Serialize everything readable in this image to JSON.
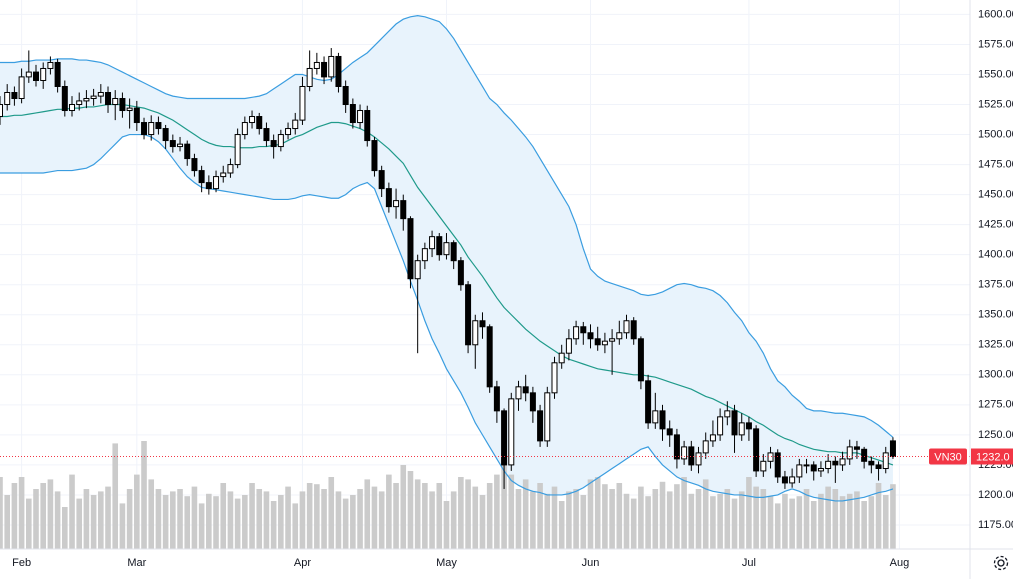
{
  "chart_data": {
    "type": "candlestick",
    "name": "VN30",
    "open": [
      1515,
      1525,
      1535,
      1530,
      1548,
      1552,
      1545,
      1555,
      1560,
      1540,
      1520,
      1525,
      1528,
      1530,
      1532,
      1535,
      1525,
      1530,
      1520,
      1522,
      1510,
      1500,
      1510,
      1505,
      1495,
      1490,
      1492,
      1480,
      1470,
      1460,
      1455,
      1465,
      1468,
      1475,
      1500,
      1510,
      1515,
      1505,
      1495,
      1490,
      1500,
      1505,
      1512,
      1540,
      1555,
      1560,
      1548,
      1565,
      1540,
      1525,
      1510,
      1520,
      1495,
      1470,
      1455,
      1440,
      1445,
      1430,
      1380,
      1395,
      1405,
      1415,
      1400,
      1410,
      1395,
      1375,
      1325,
      1345,
      1340,
      1290,
      1270,
      1225,
      1280,
      1290,
      1285,
      1270,
      1245,
      1285,
      1310,
      1318,
      1330,
      1340,
      1335,
      1330,
      1325,
      1328,
      1330,
      1335,
      1345,
      1330,
      1295,
      1260,
      1270,
      1255,
      1250,
      1230,
      1240,
      1225,
      1235,
      1245,
      1250,
      1265,
      1270,
      1250,
      1260,
      1255,
      1220,
      1228,
      1235,
      1215,
      1210,
      1215,
      1225,
      1225,
      1220,
      1222,
      1228,
      1225,
      1230,
      1240,
      1238,
      1228,
      1225,
      1222,
      1245
    ],
    "high": [
      1532,
      1542,
      1540,
      1555,
      1570,
      1558,
      1560,
      1565,
      1563,
      1545,
      1532,
      1535,
      1537,
      1538,
      1542,
      1540,
      1537,
      1535,
      1530,
      1528,
      1514,
      1516,
      1515,
      1508,
      1500,
      1498,
      1495,
      1484,
      1474,
      1466,
      1470,
      1474,
      1480,
      1505,
      1515,
      1520,
      1518,
      1510,
      1500,
      1504,
      1510,
      1518,
      1548,
      1570,
      1568,
      1565,
      1572,
      1568,
      1545,
      1530,
      1525,
      1524,
      1498,
      1474,
      1460,
      1455,
      1450,
      1432,
      1400,
      1410,
      1420,
      1418,
      1418,
      1412,
      1398,
      1378,
      1350,
      1352,
      1342,
      1295,
      1272,
      1285,
      1295,
      1300,
      1290,
      1275,
      1290,
      1315,
      1325,
      1338,
      1345,
      1344,
      1342,
      1340,
      1335,
      1338,
      1345,
      1350,
      1348,
      1332,
      1300,
      1285,
      1275,
      1262,
      1255,
      1245,
      1245,
      1240,
      1252,
      1262,
      1272,
      1278,
      1275,
      1268,
      1265,
      1258,
      1234,
      1240,
      1238,
      1220,
      1222,
      1230,
      1230,
      1228,
      1228,
      1234,
      1232,
      1236,
      1246,
      1245,
      1240,
      1232,
      1228,
      1240,
      1248
    ],
    "low": [
      1508,
      1520,
      1524,
      1526,
      1543,
      1540,
      1538,
      1550,
      1535,
      1515,
      1515,
      1520,
      1522,
      1524,
      1526,
      1518,
      1512,
      1514,
      1505,
      1503,
      1496,
      1495,
      1500,
      1488,
      1485,
      1486,
      1474,
      1465,
      1452,
      1450,
      1452,
      1460,
      1464,
      1472,
      1496,
      1505,
      1500,
      1490,
      1480,
      1486,
      1496,
      1500,
      1508,
      1536,
      1550,
      1542,
      1544,
      1535,
      1518,
      1505,
      1505,
      1490,
      1465,
      1448,
      1435,
      1430,
      1420,
      1372,
      1318,
      1388,
      1398,
      1395,
      1396,
      1388,
      1370,
      1318,
      1305,
      1330,
      1285,
      1260,
      1205,
      1220,
      1270,
      1278,
      1260,
      1240,
      1240,
      1280,
      1305,
      1312,
      1325,
      1325,
      1322,
      1320,
      1318,
      1300,
      1325,
      1330,
      1325,
      1288,
      1255,
      1255,
      1245,
      1240,
      1222,
      1225,
      1220,
      1218,
      1230,
      1240,
      1245,
      1258,
      1235,
      1245,
      1245,
      1215,
      1215,
      1222,
      1210,
      1205,
      1206,
      1210,
      1218,
      1212,
      1215,
      1218,
      1210,
      1220,
      1225,
      1230,
      1222,
      1218,
      1212,
      1218,
      1230
    ],
    "close": [
      1525,
      1535,
      1530,
      1548,
      1552,
      1545,
      1555,
      1560,
      1540,
      1520,
      1525,
      1528,
      1530,
      1532,
      1535,
      1525,
      1530,
      1520,
      1522,
      1510,
      1500,
      1510,
      1505,
      1495,
      1490,
      1492,
      1480,
      1470,
      1460,
      1455,
      1465,
      1468,
      1475,
      1500,
      1510,
      1515,
      1505,
      1495,
      1490,
      1500,
      1505,
      1512,
      1540,
      1555,
      1560,
      1548,
      1565,
      1540,
      1525,
      1510,
      1520,
      1495,
      1470,
      1455,
      1440,
      1445,
      1430,
      1380,
      1395,
      1405,
      1415,
      1400,
      1410,
      1395,
      1375,
      1325,
      1345,
      1340,
      1290,
      1270,
      1225,
      1280,
      1290,
      1285,
      1270,
      1245,
      1285,
      1310,
      1318,
      1330,
      1340,
      1335,
      1330,
      1325,
      1328,
      1330,
      1335,
      1345,
      1330,
      1295,
      1260,
      1270,
      1255,
      1250,
      1230,
      1240,
      1225,
      1235,
      1245,
      1250,
      1265,
      1270,
      1250,
      1260,
      1255,
      1220,
      1228,
      1235,
      1215,
      1210,
      1215,
      1225,
      1225,
      1220,
      1222,
      1228,
      1225,
      1230,
      1240,
      1238,
      1228,
      1225,
      1222,
      1235,
      1232
    ],
    "volume": [
      60,
      45,
      55,
      60,
      42,
      50,
      55,
      58,
      48,
      35,
      62,
      42,
      50,
      45,
      48,
      52,
      88,
      38,
      50,
      62,
      90,
      58,
      50,
      45,
      48,
      50,
      44,
      52,
      38,
      46,
      44,
      55,
      48,
      42,
      45,
      55,
      50,
      48,
      40,
      45,
      52,
      38,
      48,
      55,
      54,
      50,
      60,
      48,
      42,
      45,
      50,
      58,
      52,
      48,
      62,
      55,
      70,
      65,
      58,
      55,
      48,
      55,
      40,
      48,
      60,
      58,
      52,
      45,
      55,
      62,
      80,
      62,
      50,
      58,
      48,
      55,
      46,
      52,
      40,
      48,
      50,
      45,
      58,
      60,
      54,
      50,
      55,
      46,
      42,
      52,
      44,
      50,
      56,
      48,
      54,
      60,
      46,
      50,
      58,
      44,
      46,
      50,
      42,
      48,
      60,
      52,
      50,
      44,
      38,
      46,
      42,
      44,
      50,
      40,
      46,
      52,
      50,
      44,
      46,
      48,
      40,
      44,
      55,
      45,
      54
    ],
    "upper": [
      1560,
      1560,
      1560,
      1561,
      1561,
      1562,
      1562,
      1562,
      1563,
      1563,
      1563,
      1562,
      1562,
      1561,
      1560,
      1558,
      1555,
      1552,
      1549,
      1546,
      1543,
      1540,
      1537,
      1534,
      1532,
      1531,
      1530,
      1530,
      1530,
      1530,
      1530,
      1530,
      1530,
      1530,
      1530,
      1531,
      1532,
      1534,
      1538,
      1542,
      1546,
      1550,
      1550,
      1548,
      1546,
      1545,
      1546,
      1550,
      1555,
      1560,
      1564,
      1568,
      1574,
      1580,
      1586,
      1592,
      1596,
      1598,
      1599,
      1598,
      1596,
      1594,
      1588,
      1580,
      1570,
      1560,
      1550,
      1540,
      1530,
      1525,
      1518,
      1512,
      1505,
      1498,
      1490,
      1480,
      1470,
      1460,
      1450,
      1440,
      1425,
      1405,
      1388,
      1382,
      1378,
      1376,
      1374,
      1372,
      1370,
      1367,
      1366,
      1367,
      1369,
      1372,
      1375,
      1376,
      1375,
      1373,
      1372,
      1370,
      1366,
      1360,
      1352,
      1345,
      1335,
      1328,
      1318,
      1305,
      1295,
      1290,
      1283,
      1278,
      1272,
      1270,
      1270,
      1269,
      1268,
      1268,
      1267,
      1266,
      1265,
      1262,
      1258,
      1253,
      1248
    ],
    "middle": [
      1515,
      1515,
      1516,
      1516,
      1517,
      1518,
      1519,
      1520,
      1521,
      1521,
      1522,
      1522,
      1523,
      1523,
      1524,
      1525,
      1525,
      1525,
      1524,
      1523,
      1522,
      1520,
      1518,
      1515,
      1512,
      1508,
      1504,
      1500,
      1496,
      1493,
      1491,
      1490,
      1490,
      1489,
      1489,
      1489,
      1490,
      1490,
      1491,
      1492,
      1495,
      1498,
      1500,
      1503,
      1506,
      1508,
      1510,
      1510,
      1509,
      1507,
      1505,
      1502,
      1498,
      1493,
      1488,
      1482,
      1476,
      1466,
      1456,
      1448,
      1440,
      1432,
      1424,
      1416,
      1408,
      1398,
      1390,
      1382,
      1373,
      1364,
      1356,
      1350,
      1344,
      1338,
      1333,
      1328,
      1324,
      1320,
      1316,
      1313,
      1311,
      1309,
      1307,
      1305,
      1304,
      1303,
      1302,
      1301,
      1300,
      1300,
      1299,
      1298,
      1296,
      1294,
      1292,
      1290,
      1288,
      1285,
      1282,
      1280,
      1277,
      1274,
      1271,
      1268,
      1265,
      1261,
      1258,
      1254,
      1250,
      1247,
      1245,
      1242,
      1240,
      1238,
      1237,
      1236,
      1236,
      1235,
      1235,
      1235,
      1233,
      1231,
      1229,
      1227,
      1225
    ],
    "lower": [
      1468,
      1468,
      1468,
      1468,
      1468,
      1468,
      1468,
      1469,
      1470,
      1470,
      1470,
      1471,
      1472,
      1475,
      1480,
      1486,
      1492,
      1498,
      1500,
      1500,
      1500,
      1498,
      1494,
      1488,
      1480,
      1472,
      1465,
      1460,
      1456,
      1455,
      1454,
      1453,
      1452,
      1451,
      1450,
      1449,
      1448,
      1447,
      1446,
      1446,
      1446,
      1447,
      1449,
      1450,
      1449,
      1448,
      1447,
      1447,
      1450,
      1455,
      1458,
      1460,
      1455,
      1440,
      1425,
      1410,
      1395,
      1378,
      1362,
      1345,
      1330,
      1318,
      1305,
      1295,
      1285,
      1273,
      1260,
      1250,
      1240,
      1230,
      1220,
      1212,
      1208,
      1205,
      1203,
      1202,
      1200,
      1200,
      1200,
      1201,
      1203,
      1206,
      1210,
      1214,
      1218,
      1222,
      1226,
      1230,
      1234,
      1238,
      1240,
      1232,
      1225,
      1220,
      1215,
      1212,
      1210,
      1208,
      1205,
      1203,
      1202,
      1201,
      1200,
      1200,
      1199,
      1198,
      1198,
      1199,
      1200,
      1203,
      1205,
      1203,
      1200,
      1198,
      1197,
      1196,
      1195,
      1195,
      1196,
      1197,
      1198,
      1200,
      1202,
      1203,
      1205
    ],
    "up_color": "#ffffff",
    "down_color": "#000000",
    "volume_color": "#cbcbcb",
    "volume_lim": [
      0,
      100
    ],
    "band_color": "#3a9de0",
    "middle_color": "#1f9a8a",
    "band_fill": "#e8f3fc",
    "last_price": {
      "value": 1232,
      "label": "1232.0"
    },
    "last_color": "#f23645",
    "xlim": [
      0,
      134.7
    ],
    "xticks": [
      {
        "value": 3,
        "label": "Feb"
      },
      {
        "value": 19,
        "label": "Mar"
      },
      {
        "value": 42,
        "label": "Apr"
      },
      {
        "value": 62,
        "label": "May"
      },
      {
        "value": 82,
        "label": "Jun"
      },
      {
        "value": 104,
        "label": "Jul"
      },
      {
        "value": 124.9,
        "label": "Aug"
      }
    ],
    "ylim": [
      1155,
      1612
    ],
    "yticks": [
      {
        "value": 1175,
        "label": "1175.00"
      },
      {
        "value": 1200,
        "label": "1200.00"
      },
      {
        "value": 1225,
        "label": "1225.00"
      },
      {
        "value": 1250,
        "label": "1250.00"
      },
      {
        "value": 1275,
        "label": "1275.00"
      },
      {
        "value": 1300,
        "label": "1300.00"
      },
      {
        "value": 1325,
        "label": "1325.00"
      },
      {
        "value": 1350,
        "label": "1350.00"
      },
      {
        "value": 1375,
        "label": "1375.00"
      },
      {
        "value": 1400,
        "label": "1400.00"
      },
      {
        "value": 1425,
        "label": "1425.00"
      },
      {
        "value": 1450,
        "label": "1450.00"
      },
      {
        "value": 1475,
        "label": "1475.00"
      },
      {
        "value": 1500,
        "label": "1500.00"
      },
      {
        "value": 1525,
        "label": "1525.00"
      },
      {
        "value": 1550,
        "label": "1550.00"
      },
      {
        "value": 1575,
        "label": "1575.00"
      },
      {
        "value": 1600,
        "label": "1600.00"
      }
    ],
    "grid": true
  }
}
